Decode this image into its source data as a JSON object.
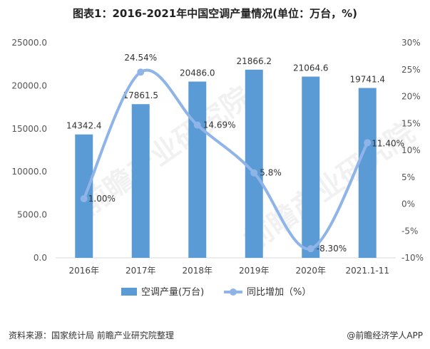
{
  "title": "图表1：2016-2021年中国空调产量情况(单位：万台，%)",
  "source": "资料来源：国家统计局 前瞻产业研究院整理",
  "brand": "@前瞻经济学人APP",
  "watermark": "前瞻产业研究院",
  "colors": {
    "bar": "#5b9bd5",
    "line": "#8fb4e8",
    "axis": "#d9d9d9",
    "grid": "#e6e6e6"
  },
  "chart_data": {
    "type": "bar+line",
    "categories": [
      "2016年",
      "2017年",
      "2018年",
      "2019年",
      "2020年",
      "2021.1-11"
    ],
    "series": [
      {
        "name": "空调产量(万台)",
        "type": "bar",
        "axis": "left",
        "values": [
          14342.4,
          17861.5,
          20486.0,
          21866.2,
          21064.6,
          19741.4
        ],
        "labels": [
          "14342.4",
          "17861.5",
          "20486.0",
          "21866.2",
          "21064.6",
          "19741.4"
        ]
      },
      {
        "name": "同比增加（%）",
        "type": "line",
        "axis": "right",
        "values": [
          1.0,
          24.54,
          14.69,
          5.8,
          -8.3,
          11.4
        ],
        "labels": [
          "1.00%",
          "24.54%",
          "14.69%",
          "5.8%",
          "-8.30%",
          "11.40%"
        ]
      }
    ],
    "y_left": {
      "min": 0,
      "max": 25000,
      "ticks": [
        "25000.0",
        "20000.0",
        "15000.0",
        "10000.0",
        "5000.0",
        "0.0"
      ]
    },
    "y_right": {
      "min": -10,
      "max": 30,
      "ticks": [
        "30%",
        "25%",
        "20%",
        "15%",
        "10%",
        "5%",
        "0%",
        "-5%",
        "-10%"
      ]
    },
    "grid": false,
    "legend_position": "bottom"
  }
}
